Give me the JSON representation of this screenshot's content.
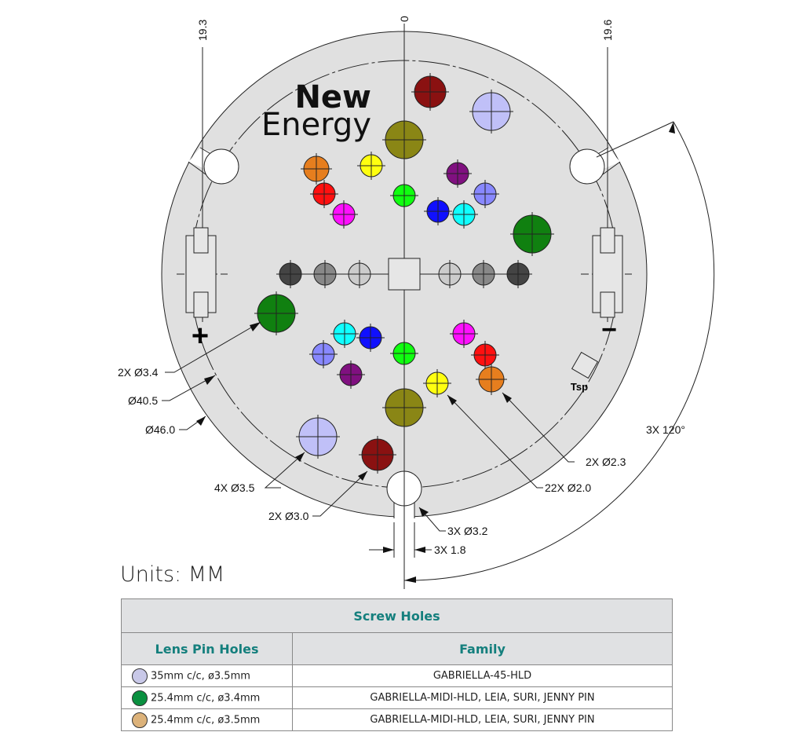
{
  "logo": {
    "line1": "New",
    "line2": "Energy"
  },
  "dimensions": {
    "top_left": "19.3",
    "top_center": "0",
    "top_right": "19.6",
    "d34": "2X  Ø3.4",
    "d405": "Ø40.5",
    "d460": "Ø46.0",
    "d35": "4X Ø3.5",
    "d30": "2X Ø3.0",
    "d32": "3X Ø3.2",
    "w18": "3X 1.8",
    "d20": "22X Ø2.0",
    "d23": "2X Ø2.3",
    "angle": "3X 120°"
  },
  "markings": {
    "plus": "+",
    "minus": "−",
    "tsp": "Tsp"
  },
  "units": "Units: MM",
  "table": {
    "title": "Screw Holes",
    "headers": [
      "Lens Pin Holes",
      "Family"
    ],
    "rows": [
      {
        "swatch": "#c8c8e8",
        "spec": "35mm c/c, ø3.5mm",
        "family": "GABRIELLA-45-HLD"
      },
      {
        "swatch": "#0a9040",
        "spec": "25.4mm c/c, ø3.4mm",
        "family": "GABRIELLA-MIDI-HLD, LEIA, SURI, JENNY PIN"
      },
      {
        "swatch": "#dcb27a",
        "spec": "25.4mm c/c, ø3.5mm",
        "family": "GABRIELLA-MIDI-HLD, LEIA, SURI, JENNY PIN"
      }
    ]
  },
  "colors": {
    "plate": "#e0e0e0"
  }
}
